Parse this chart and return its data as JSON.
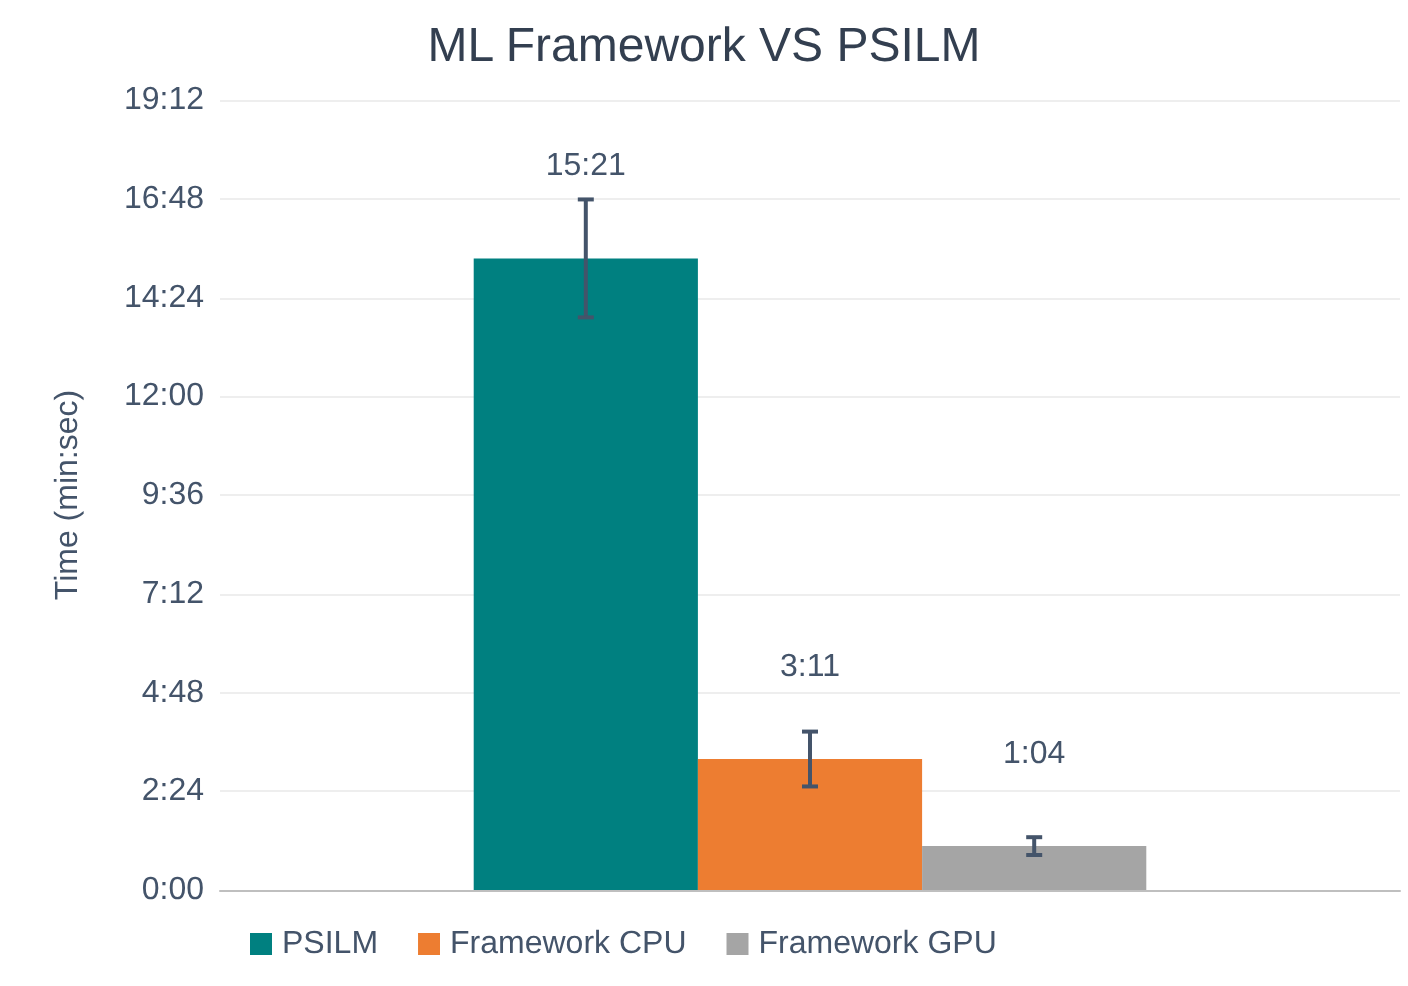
{
  "chart_data": {
    "type": "bar",
    "title": "ML Framework VS PSILM",
    "ylabel": "Time (min:sec)",
    "categories": [
      null
    ],
    "series": [
      {
        "name": "PSILM",
        "color": "#008080",
        "values": [
          921
        ],
        "errors": [
          86
        ],
        "value_labels": [
          "15:21"
        ]
      },
      {
        "name": "Framework CPU",
        "color": "#ed7d31",
        "values": [
          191
        ],
        "errors": [
          40
        ],
        "value_labels": [
          "3:11"
        ]
      },
      {
        "name": "Framework GPU",
        "color": "#a5a5a5",
        "values": [
          64
        ],
        "errors": [
          13
        ],
        "value_labels": [
          "1:04"
        ]
      }
    ],
    "ylim": [
      0,
      1152
    ],
    "yticks": [
      {
        "value": 0,
        "label": "0:00"
      },
      {
        "value": 144,
        "label": "2:24"
      },
      {
        "value": 288,
        "label": "4:48"
      },
      {
        "value": 432,
        "label": "7:12"
      },
      {
        "value": 576,
        "label": "9:36"
      },
      {
        "value": 720,
        "label": "12:00"
      },
      {
        "value": 864,
        "label": "14:24"
      },
      {
        "value": 1008,
        "label": "16:48"
      },
      {
        "value": 1152,
        "label": "19:12"
      }
    ],
    "grid": "y",
    "legend": "bottom"
  }
}
